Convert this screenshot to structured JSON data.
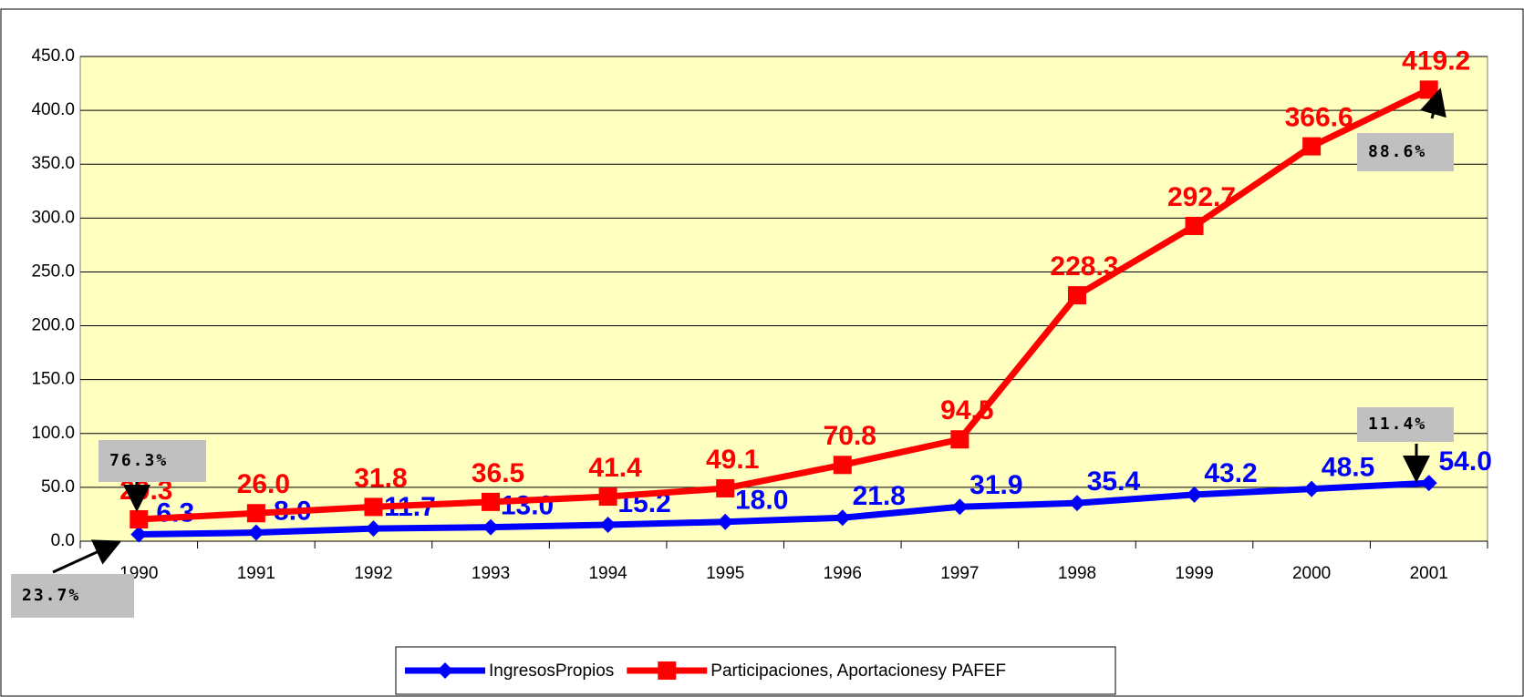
{
  "chart_data": {
    "type": "line",
    "categories": [
      "1990",
      "1991",
      "1992",
      "1993",
      "1994",
      "1995",
      "1996",
      "1997",
      "1998",
      "1999",
      "2000",
      "2001"
    ],
    "series": [
      {
        "name": "IngresosPropios",
        "color": "#0000ff",
        "marker": "diamond",
        "values": [
          6.3,
          8.0,
          11.7,
          13.0,
          15.2,
          18.0,
          21.8,
          31.9,
          35.4,
          43.2,
          48.5,
          54.0
        ],
        "value_labels": [
          "6.3",
          "8.0",
          "11.7",
          "13.0",
          "15.2",
          "18.0",
          "21.8",
          "31.9",
          "35.4",
          "43.2",
          "48.5",
          "54.0"
        ]
      },
      {
        "name": "Participaciones, Aportacionesy PAFEF",
        "color": "#ff0000",
        "marker": "square",
        "values": [
          20.3,
          26.0,
          31.8,
          36.5,
          41.4,
          49.1,
          70.8,
          94.5,
          228.3,
          292.7,
          366.6,
          419.2
        ],
        "value_labels": [
          "20.3",
          "26.0",
          "31.8",
          "36.5",
          "41.4",
          "49.1",
          "70.8",
          "94.5",
          "228.3",
          "292.7",
          "366.6",
          "419.2"
        ]
      }
    ],
    "ylim": [
      0,
      450
    ],
    "yticks": [
      {
        "value": 0,
        "label": "0.0"
      },
      {
        "value": 50,
        "label": "50.0"
      },
      {
        "value": 100,
        "label": "100.0"
      },
      {
        "value": 150,
        "label": "150.0"
      },
      {
        "value": 200,
        "label": "200.0"
      },
      {
        "value": 250,
        "label": "250.0"
      },
      {
        "value": 300,
        "label": "300.0"
      },
      {
        "value": 350,
        "label": "350.0"
      },
      {
        "value": 400,
        "label": "400.0"
      },
      {
        "value": 450,
        "label": "450.0"
      }
    ],
    "grid": true,
    "legend": "bottom",
    "annotations": [
      "76.3%",
      "23.7%",
      "88.6%",
      "11.4%"
    ]
  }
}
